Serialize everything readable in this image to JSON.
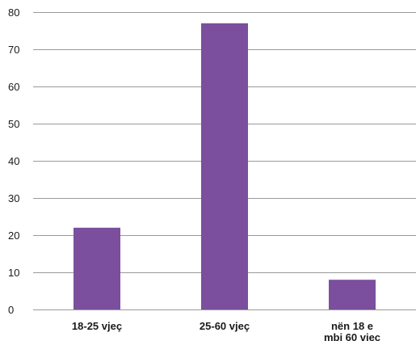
{
  "chart_data": {
    "type": "bar",
    "categories": [
      "18-25 vjeç",
      "25-60 vjeç",
      "nën 18 e mbi 60 viec"
    ],
    "category_label_lines": [
      [
        "18-25 vjeç"
      ],
      [
        "25-60 vjeç"
      ],
      [
        "nën 18 e",
        "mbi 60 viec"
      ]
    ],
    "values": [
      22,
      77,
      8
    ],
    "ylim": [
      0,
      80
    ],
    "yticks": [
      0,
      10,
      20,
      30,
      40,
      50,
      60,
      70,
      80
    ],
    "grid": true,
    "bar_color": "#7b4f9d",
    "grid_color": "#9a9a9a"
  }
}
